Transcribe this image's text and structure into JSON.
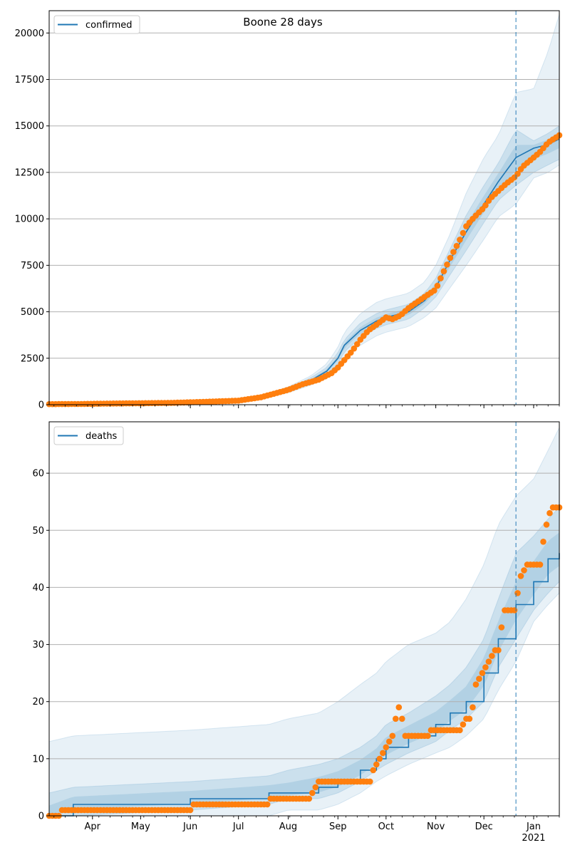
{
  "figure": {
    "title": "Boone 28 days"
  },
  "colors": {
    "model": "#1f77b4",
    "observed": "#ff7f0e",
    "band": "#1f77b4",
    "grid": "#b0b0b0",
    "forecast_line": "#1f77b4"
  },
  "chart_data": [
    {
      "type": "line",
      "panel": "top",
      "legend": {
        "label": "confirmed",
        "placement": "top-left"
      },
      "x_axis": {
        "range": [
          "2020-03-05",
          "2021-01-17"
        ],
        "tick_labels": []
      },
      "y_axis": {
        "range": [
          0,
          21200
        ],
        "ticks": [
          0,
          2500,
          5000,
          7500,
          10000,
          12500,
          15000,
          17500,
          20000
        ]
      },
      "grid": "y",
      "forecast_start": "2020-12-21",
      "model": {
        "dates": [
          "2020-03-05",
          "2020-04-01",
          "2020-05-01",
          "2020-06-01",
          "2020-06-15",
          "2020-07-01",
          "2020-07-15",
          "2020-08-01",
          "2020-08-15",
          "2020-08-25",
          "2020-09-01",
          "2020-09-05",
          "2020-09-15",
          "2020-09-25",
          "2020-10-01",
          "2020-10-15",
          "2020-10-25",
          "2020-11-01",
          "2020-11-10",
          "2020-11-20",
          "2020-12-01",
          "2020-12-10",
          "2020-12-21",
          "2021-01-01",
          "2021-01-10",
          "2021-01-17"
        ],
        "values": [
          30,
          50,
          80,
          120,
          160,
          200,
          400,
          800,
          1300,
          1800,
          2500,
          3200,
          4000,
          4500,
          4700,
          5000,
          5600,
          6300,
          7800,
          9300,
          10800,
          12000,
          13300,
          13800,
          14000,
          14300
        ]
      },
      "band_inner": {
        "lower": [
          20,
          40,
          70,
          110,
          150,
          180,
          360,
          720,
          1150,
          1600,
          2200,
          2850,
          3600,
          4100,
          4300,
          4600,
          5200,
          5800,
          7000,
          8300,
          9800,
          11000,
          11800,
          12500,
          12900,
          13200
        ],
        "upper": [
          40,
          60,
          90,
          130,
          170,
          220,
          440,
          880,
          1450,
          2000,
          2800,
          3500,
          4400,
          4900,
          5100,
          5400,
          6000,
          6800,
          8400,
          10200,
          11800,
          13000,
          14800,
          14200,
          14600,
          15000
        ]
      },
      "band_outer": {
        "lower": [
          10,
          30,
          60,
          100,
          130,
          160,
          320,
          640,
          1050,
          1400,
          1900,
          2500,
          3200,
          3700,
          3900,
          4200,
          4700,
          5200,
          6300,
          7500,
          8900,
          10100,
          10800,
          12200,
          12500,
          12900
        ],
        "upper": [
          50,
          70,
          100,
          140,
          190,
          240,
          480,
          960,
          1550,
          2200,
          3100,
          3900,
          4900,
          5500,
          5700,
          6000,
          6600,
          7500,
          9200,
          11400,
          13300,
          14500,
          16800,
          17000,
          19000,
          21000
        ]
      },
      "observed": {
        "dates": [
          "2020-03-05",
          "2020-03-25",
          "2020-04-10",
          "2020-05-01",
          "2020-05-20",
          "2020-06-01",
          "2020-06-15",
          "2020-07-01",
          "2020-07-15",
          "2020-08-01",
          "2020-08-10",
          "2020-08-20",
          "2020-08-28",
          "2020-09-01",
          "2020-09-05",
          "2020-09-10",
          "2020-09-15",
          "2020-09-20",
          "2020-09-25",
          "2020-10-01",
          "2020-10-05",
          "2020-10-10",
          "2020-10-15",
          "2020-10-20",
          "2020-10-25",
          "2020-11-01",
          "2020-11-05",
          "2020-11-10",
          "2020-11-15",
          "2020-11-20",
          "2020-11-25",
          "2020-12-01",
          "2020-12-05",
          "2020-12-10",
          "2020-12-15",
          "2020-12-21",
          "2020-12-25",
          "2021-01-01",
          "2021-01-05",
          "2021-01-10",
          "2021-01-17"
        ],
        "values": [
          30,
          40,
          60,
          80,
          100,
          130,
          170,
          220,
          400,
          800,
          1100,
          1350,
          1700,
          2000,
          2400,
          2900,
          3500,
          4000,
          4300,
          4700,
          4600,
          4800,
          5200,
          5500,
          5800,
          6200,
          7000,
          7900,
          8700,
          9600,
          10100,
          10600,
          11100,
          11500,
          11900,
          12300,
          12800,
          13300,
          13600,
          14100,
          14500
        ]
      }
    },
    {
      "type": "line",
      "panel": "bottom",
      "legend": {
        "label": "deaths",
        "placement": "top-left"
      },
      "x_axis": {
        "range": [
          "2020-03-05",
          "2021-01-17"
        ],
        "tick_labels": [
          {
            "date": "2020-04-01",
            "label": "Apr"
          },
          {
            "date": "2020-05-01",
            "label": "May"
          },
          {
            "date": "2020-06-01",
            "label": "Jun"
          },
          {
            "date": "2020-07-01",
            "label": "Jul"
          },
          {
            "date": "2020-08-01",
            "label": "Aug"
          },
          {
            "date": "2020-09-01",
            "label": "Sep"
          },
          {
            "date": "2020-10-01",
            "label": "Oct"
          },
          {
            "date": "2020-11-01",
            "label": "Nov"
          },
          {
            "date": "2020-12-01",
            "label": "Dec"
          },
          {
            "date": "2021-01-01",
            "label": "Jan",
            "sublabel": "2021"
          }
        ]
      },
      "y_axis": {
        "range": [
          0,
          69
        ],
        "ticks": [
          0,
          10,
          20,
          30,
          40,
          50,
          60
        ]
      },
      "grid": "y",
      "forecast_start": "2020-12-21",
      "model": {
        "dates": [
          "2020-03-05",
          "2020-03-20",
          "2020-06-01",
          "2020-07-20",
          "2020-08-01",
          "2020-08-20",
          "2020-09-01",
          "2020-09-15",
          "2020-09-25",
          "2020-10-01",
          "2020-10-15",
          "2020-11-01",
          "2020-11-10",
          "2020-11-20",
          "2020-12-01",
          "2020-12-10",
          "2020-12-21",
          "2021-01-01",
          "2021-01-10",
          "2021-01-17"
        ],
        "values": [
          0,
          2,
          3,
          4,
          4,
          5,
          6,
          8,
          10,
          12,
          14,
          16,
          18,
          20,
          25,
          31,
          37,
          41,
          45,
          46
        ],
        "step": true
      },
      "band_inner": {
        "lower": [
          0,
          0,
          1,
          2,
          3,
          3,
          4,
          6,
          8,
          9,
          11,
          13,
          15,
          17,
          20,
          26,
          31,
          36,
          39,
          41
        ],
        "upper": [
          4,
          5,
          6,
          7,
          8,
          9,
          10,
          12,
          14,
          16,
          18,
          21,
          23,
          26,
          31,
          38,
          46,
          49,
          52,
          54
        ]
      },
      "band_outer": {
        "lower": [
          0,
          0,
          0,
          0,
          1,
          1,
          2,
          4,
          6,
          7,
          9,
          11,
          12,
          14,
          17,
          22,
          27,
          34,
          37,
          39
        ],
        "upper": [
          13,
          14,
          15,
          16,
          17,
          18,
          20,
          23,
          25,
          27,
          30,
          32,
          34,
          38,
          44,
          51,
          56,
          59,
          64,
          68
        ]
      },
      "observed": {
        "dates": [
          "2020-03-05",
          "2020-03-20",
          "2020-04-01",
          "2020-05-01",
          "2020-06-01",
          "2020-06-03",
          "2020-07-01",
          "2020-07-20",
          "2020-07-22",
          "2020-08-15",
          "2020-08-17",
          "2020-08-22",
          "2020-09-01",
          "2020-09-15",
          "2020-09-21",
          "2020-09-23",
          "2020-09-26",
          "2020-09-29",
          "2020-10-05",
          "2020-10-09",
          "2020-10-13",
          "2020-10-20",
          "2020-10-25",
          "2020-11-01",
          "2020-11-10",
          "2020-11-15",
          "2020-11-18",
          "2020-11-20",
          "2020-11-23",
          "2020-11-26",
          "2020-12-01",
          "2020-12-06",
          "2020-12-10",
          "2020-12-14",
          "2020-12-17",
          "2020-12-21",
          "2020-12-22",
          "2020-12-24",
          "2020-12-28",
          "2021-01-05",
          "2021-01-08",
          "2021-01-12",
          "2021-01-17"
        ],
        "values": [
          0,
          1,
          1,
          1,
          1,
          2,
          2,
          2,
          3,
          3,
          5,
          6,
          6,
          6,
          6,
          8,
          10,
          11,
          14,
          19,
          14,
          14,
          14,
          15,
          15,
          15,
          16,
          17,
          17,
          23,
          25,
          28,
          29,
          36,
          36,
          36,
          39,
          42,
          44,
          44,
          50,
          54,
          54
        ]
      }
    }
  ]
}
